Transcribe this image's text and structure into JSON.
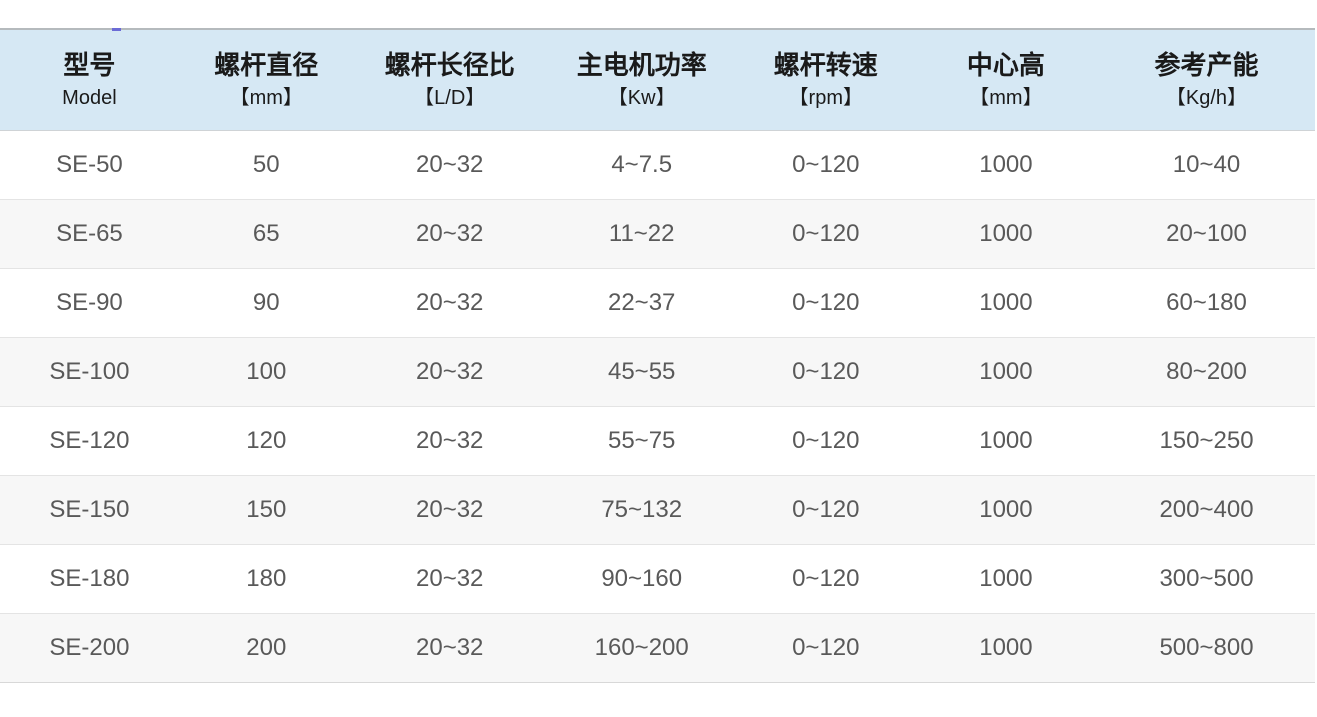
{
  "colors": {
    "header_bg": "#d6e8f4",
    "row_alt_bg": "#f7f7f7",
    "header_text": "#1a1a1a",
    "body_text": "#595959",
    "top_border": "#b5babd",
    "header_border": "#cfd3d6",
    "row_border": "#e4e4e4",
    "row_border_strong": "#d8d8d8",
    "fragment_color": "#6b6bd6"
  },
  "chart_data": {
    "type": "table",
    "columns": [
      {
        "title": "型号",
        "subtitle": "Model"
      },
      {
        "title": "螺杆直径",
        "subtitle": "【mm】"
      },
      {
        "title": "螺杆长径比",
        "subtitle": "【L/D】"
      },
      {
        "title": "主电机功率",
        "subtitle": "【Kw】"
      },
      {
        "title": "螺杆转速",
        "subtitle": "【rpm】"
      },
      {
        "title": "中心高",
        "subtitle": "【mm】"
      },
      {
        "title": "参考产能",
        "subtitle": "【Kg/h】"
      }
    ],
    "rows": [
      [
        "SE-50",
        "50",
        "20~32",
        "4~7.5",
        "0~120",
        "1000",
        "10~40"
      ],
      [
        "SE-65",
        "65",
        "20~32",
        "11~22",
        "0~120",
        "1000",
        "20~100"
      ],
      [
        "SE-90",
        "90",
        "20~32",
        "22~37",
        "0~120",
        "1000",
        "60~180"
      ],
      [
        "SE-100",
        "100",
        "20~32",
        "45~55",
        "0~120",
        "1000",
        "80~200"
      ],
      [
        "SE-120",
        "120",
        "20~32",
        "55~75",
        "0~120",
        "1000",
        "150~250"
      ],
      [
        "SE-150",
        "150",
        "20~32",
        "75~132",
        "0~120",
        "1000",
        "200~400"
      ],
      [
        "SE-180",
        "180",
        "20~32",
        "90~160",
        "0~120",
        "1000",
        "300~500"
      ],
      [
        "SE-200",
        "200",
        "20~32",
        "160~200",
        "0~120",
        "1000",
        "500~800"
      ]
    ]
  }
}
